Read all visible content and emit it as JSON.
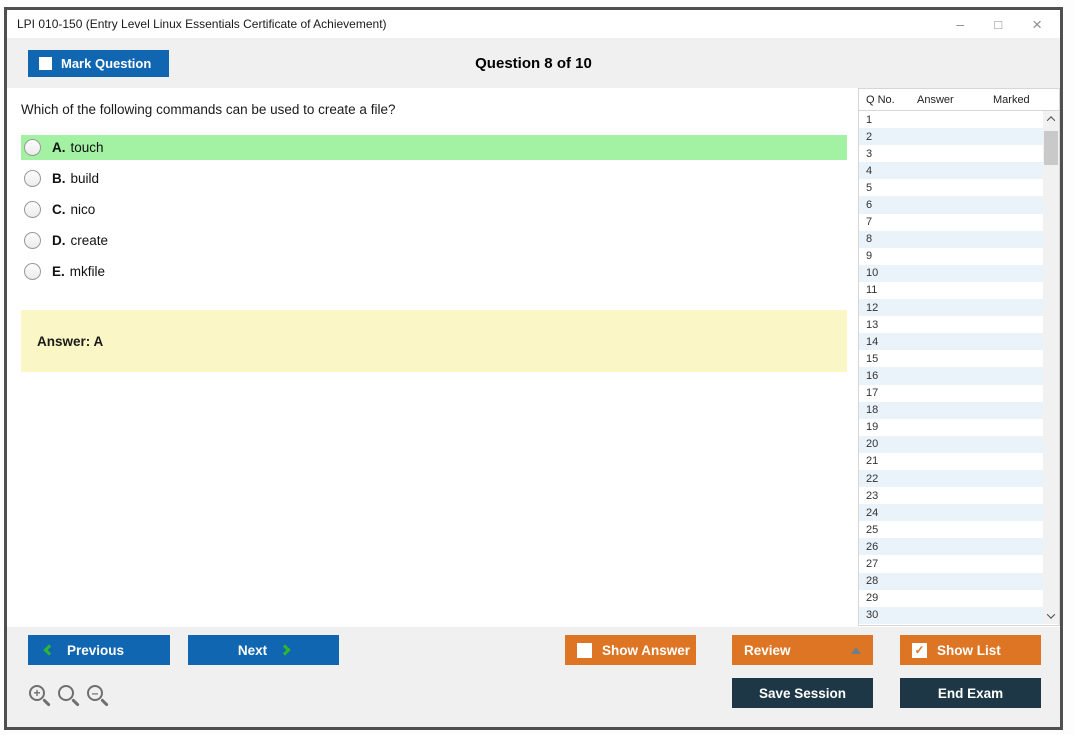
{
  "window": {
    "title": "LPI 010-150 (Entry Level Linux Essentials Certificate of Achievement)",
    "controls": {
      "minimize": "–",
      "maximize": "□",
      "close": "×"
    }
  },
  "header": {
    "mark_question_label": "Mark Question",
    "question_counter": "Question 8 of 10"
  },
  "question": {
    "text": "Which of the following commands can be used to create a file?",
    "options": [
      {
        "letter": "A.",
        "text": "touch",
        "highlighted": true
      },
      {
        "letter": "B.",
        "text": "build",
        "highlighted": false
      },
      {
        "letter": "C.",
        "text": "nico",
        "highlighted": false
      },
      {
        "letter": "D.",
        "text": "create",
        "highlighted": false
      },
      {
        "letter": "E.",
        "text": "mkfile",
        "highlighted": false
      }
    ],
    "answer_label": "Answer: A"
  },
  "question_list": {
    "columns": [
      "Q No.",
      "Answer",
      "Marked"
    ],
    "row_numbers": [
      "1",
      "2",
      "3",
      "4",
      "5",
      "6",
      "7",
      "8",
      "9",
      "10",
      "11",
      "12",
      "13",
      "14",
      "15",
      "16",
      "17",
      "18",
      "19",
      "20",
      "21",
      "22",
      "23",
      "24",
      "25",
      "26",
      "27",
      "28",
      "29",
      "30"
    ]
  },
  "footer": {
    "previous_label": "Previous",
    "next_label": "Next",
    "show_answer_label": "Show Answer",
    "review_label": "Review",
    "show_list_label": "Show List",
    "save_session_label": "Save Session",
    "end_exam_label": "End Exam",
    "show_list_checked": "✓"
  },
  "colors": {
    "blue": "#1066b1",
    "orange": "#de7524",
    "navy": "#1e3746",
    "green": "#a3f1a3",
    "yellow": "#fbf6c5",
    "row_blue": "#eaf2fa",
    "bar_gray": "#f0f0f0",
    "frame_gray": "#4f4f4f",
    "chev_green": "#2eb82e"
  }
}
